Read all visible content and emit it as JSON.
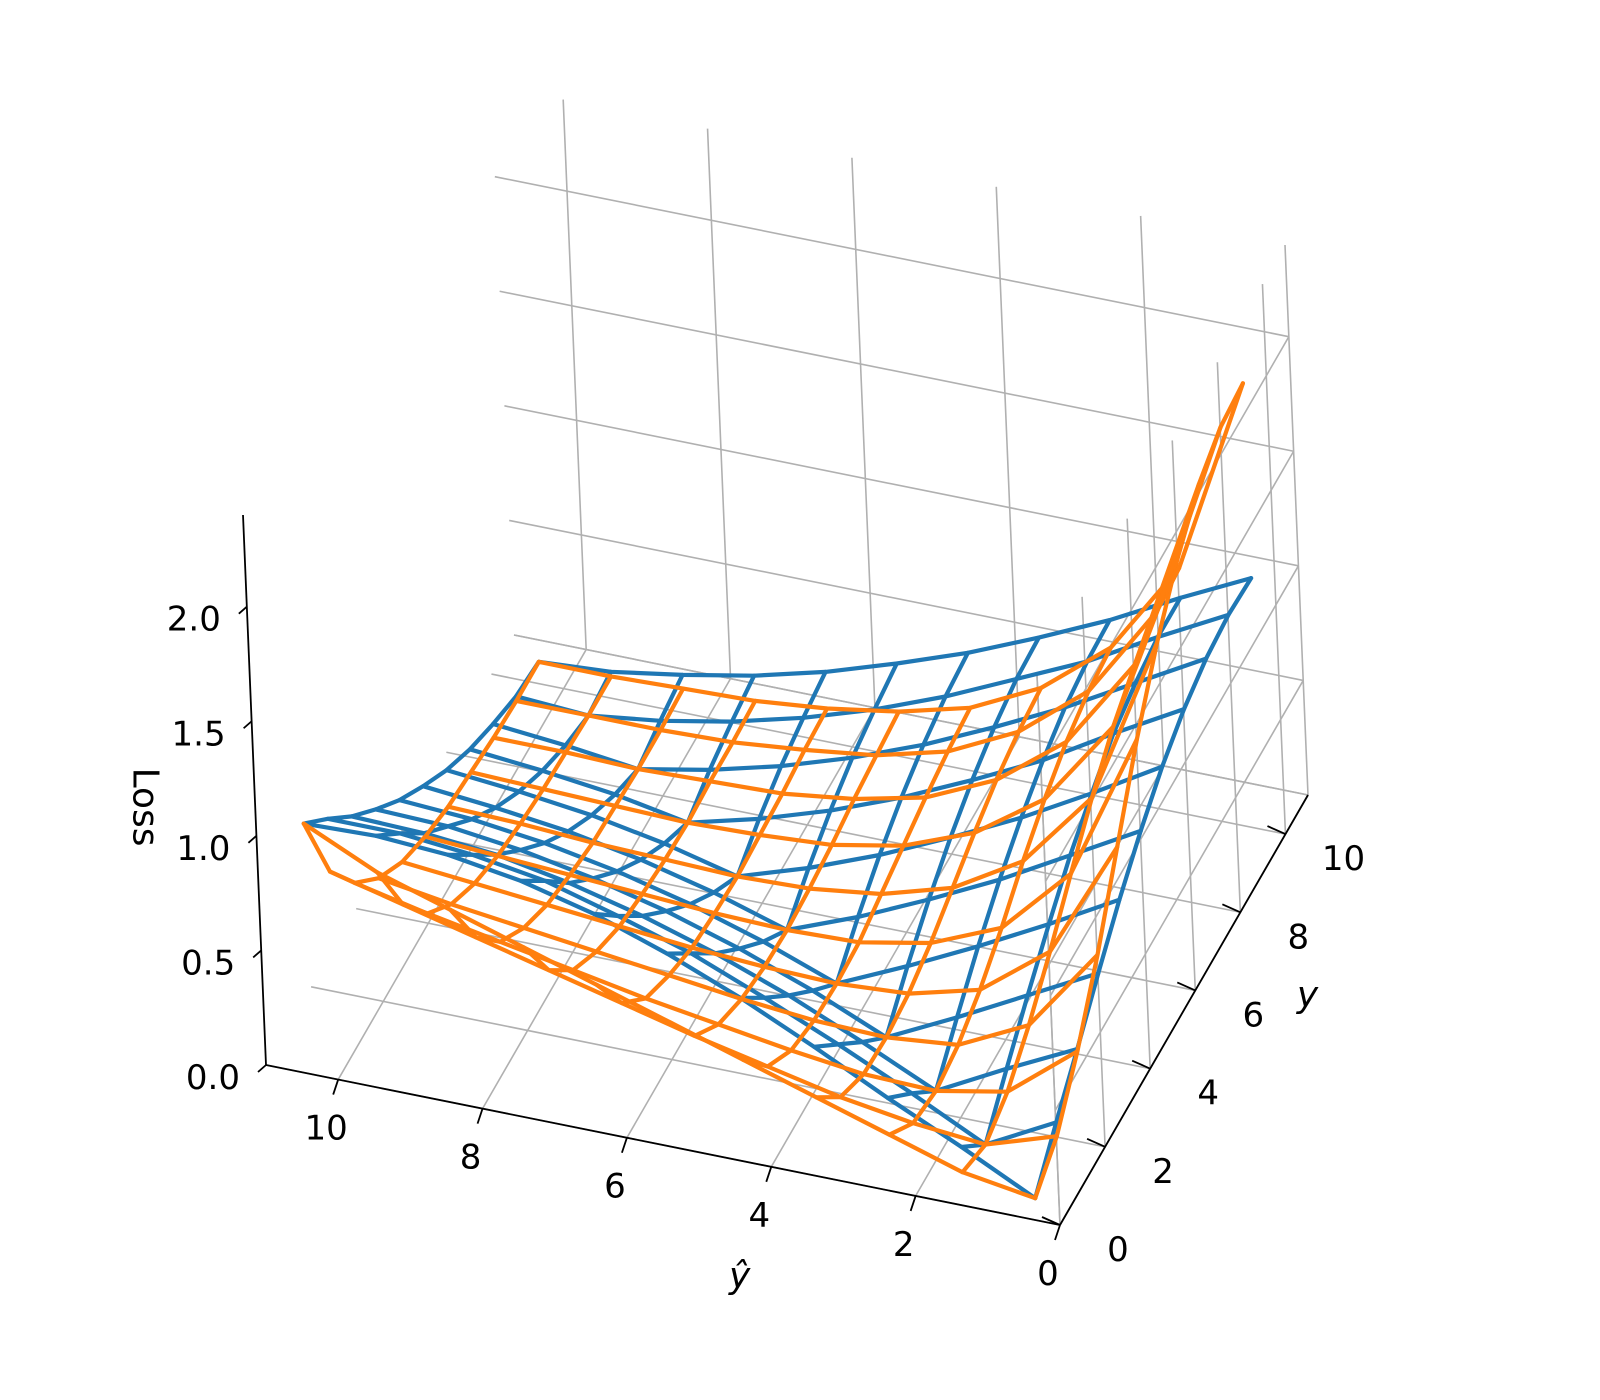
{
  "chart_data": {
    "type": "3d-wireframe",
    "title": "",
    "xlabel": "ŷ",
    "ylabel": "y",
    "zlabel": "Loss",
    "xlim": [
      0,
      11
    ],
    "ylim": [
      0,
      11
    ],
    "zlim": [
      0,
      2.4
    ],
    "x_ticks": [
      "0",
      "2",
      "4",
      "6",
      "8",
      "10"
    ],
    "y_ticks": [
      "0",
      "2",
      "4",
      "6",
      "8",
      "10"
    ],
    "z_ticks": [
      "0.0",
      "0.5",
      "1.0",
      "1.5",
      "2.0"
    ],
    "grid": true,
    "legend": "none",
    "wire_grid": [
      0.5,
      1.5,
      2.5,
      3.5,
      4.5,
      5.5,
      6.5,
      7.5,
      8.5,
      9.5,
      10.5
    ],
    "series": [
      {
        "color": "#1f77b4",
        "z_grid": [
          [
            0,
            0.16,
            0.31,
            0.47,
            0.62,
            0.75,
            0.86,
            0.94,
            0.99,
            1.01,
            1.0
          ],
          [
            0.16,
            0,
            0.16,
            0.31,
            0.45,
            0.58,
            0.68,
            0.77,
            0.82,
            0.85,
            0.85
          ],
          [
            0.31,
            0.16,
            0,
            0.15,
            0.29,
            0.41,
            0.51,
            0.59,
            0.65,
            0.68,
            0.69
          ],
          [
            0.47,
            0.31,
            0.15,
            0,
            0.14,
            0.26,
            0.36,
            0.44,
            0.5,
            0.54,
            0.55
          ],
          [
            0.62,
            0.45,
            0.29,
            0.14,
            0,
            0.12,
            0.22,
            0.3,
            0.36,
            0.4,
            0.42
          ],
          [
            0.75,
            0.58,
            0.41,
            0.26,
            0.12,
            0,
            0.1,
            0.18,
            0.24,
            0.28,
            0.31
          ],
          [
            0.86,
            0.68,
            0.51,
            0.36,
            0.22,
            0.1,
            0,
            0.08,
            0.14,
            0.18,
            0.21
          ],
          [
            0.94,
            0.77,
            0.59,
            0.44,
            0.3,
            0.18,
            0.08,
            0,
            0.06,
            0.1,
            0.13
          ],
          [
            0.99,
            0.82,
            0.65,
            0.5,
            0.36,
            0.24,
            0.14,
            0.06,
            0,
            0.04,
            0.07
          ],
          [
            1.01,
            0.85,
            0.68,
            0.54,
            0.4,
            0.28,
            0.18,
            0.1,
            0.04,
            0,
            0.02
          ],
          [
            1.0,
            0.85,
            0.69,
            0.55,
            0.42,
            0.31,
            0.21,
            0.13,
            0.07,
            0.02,
            0
          ]
        ]
      },
      {
        "color": "#ff7f0e",
        "z_grid": [
          [
            0,
            0.1,
            0.3,
            0.55,
            0.85,
            1.15,
            1.4,
            1.6,
            1.75,
            1.83,
            1.85
          ],
          [
            0.05,
            0,
            0.06,
            0.18,
            0.33,
            0.5,
            0.66,
            0.8,
            0.9,
            0.96,
            0.98
          ],
          [
            0.15,
            0.03,
            0,
            0.03,
            0.1,
            0.2,
            0.32,
            0.42,
            0.5,
            0.55,
            0.57
          ],
          [
            0.25,
            0.08,
            0.01,
            0,
            0.02,
            0.07,
            0.14,
            0.21,
            0.27,
            0.31,
            0.33
          ],
          [
            0.35,
            0.15,
            0.05,
            0.01,
            0,
            0.01,
            0.05,
            0.09,
            0.13,
            0.16,
            0.18
          ],
          [
            0.45,
            0.22,
            0.1,
            0.04,
            0.01,
            0,
            0.01,
            0.03,
            0.06,
            0.08,
            0.1
          ],
          [
            0.55,
            0.3,
            0.15,
            0.08,
            0.03,
            0.01,
            0,
            0.01,
            0.02,
            0.04,
            0.05
          ],
          [
            0.65,
            0.38,
            0.21,
            0.12,
            0.06,
            0.03,
            0.01,
            0,
            0.01,
            0.01,
            0.02
          ],
          [
            0.75,
            0.46,
            0.27,
            0.16,
            0.09,
            0.05,
            0.02,
            0.01,
            0,
            0,
            0.01
          ],
          [
            0.85,
            0.54,
            0.33,
            0.2,
            0.12,
            0.07,
            0.04,
            0.02,
            0.01,
            0,
            0
          ],
          [
            1.0,
            0.62,
            0.4,
            0.25,
            0.15,
            0.09,
            0.05,
            0.03,
            0.01,
            0,
            0
          ]
        ]
      }
    ]
  }
}
